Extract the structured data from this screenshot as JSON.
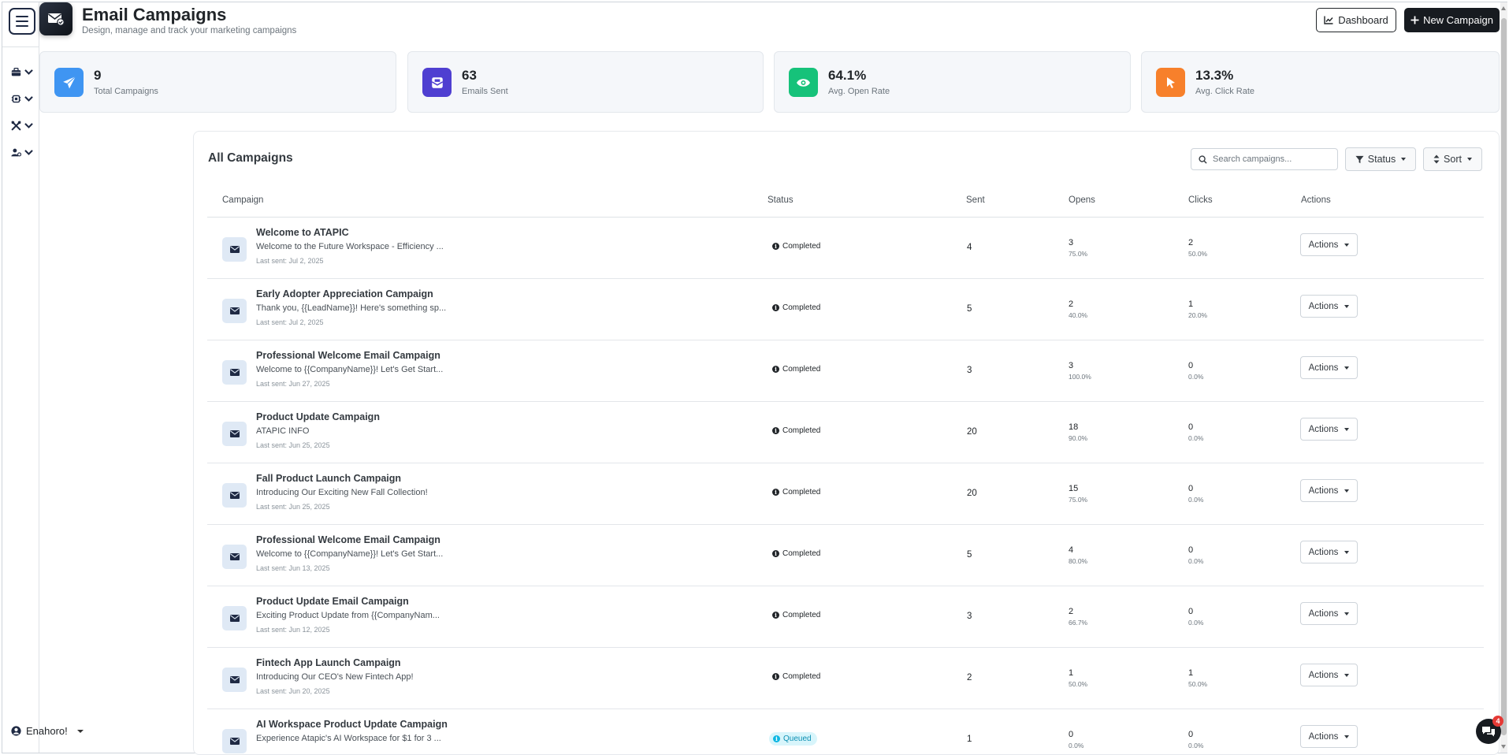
{
  "header": {
    "title": "Email Campaigns",
    "subtitle": "Design, manage and track your marketing campaigns",
    "dashboard_label": "Dashboard",
    "new_campaign_label": "New Campaign"
  },
  "sidebar": {
    "items": [
      {
        "icon": "briefcase-icon"
      },
      {
        "icon": "chip-icon"
      },
      {
        "icon": "tools-icon"
      },
      {
        "icon": "user-gear-icon"
      }
    ],
    "user_name": "Enahoro!"
  },
  "stats": [
    {
      "value": "9",
      "label": "Total Campaigns",
      "icon": "paper-plane-icon",
      "color": "#3f95f2"
    },
    {
      "value": "63",
      "label": "Emails Sent",
      "icon": "envelope-open-icon",
      "color": "#4f3fd1"
    },
    {
      "value": "64.1%",
      "label": "Avg. Open Rate",
      "icon": "eye-icon",
      "color": "#16c27a"
    },
    {
      "value": "13.3%",
      "label": "Avg. Click Rate",
      "icon": "pointer-icon",
      "color": "#f7802b"
    }
  ],
  "campaigns_panel": {
    "title": "All Campaigns",
    "search_placeholder": "Search campaigns...",
    "status_label": "Status",
    "sort_label": "Sort",
    "columns": [
      "Campaign",
      "Status",
      "Sent",
      "Opens",
      "Clicks",
      "Actions"
    ]
  },
  "campaigns": [
    {
      "name": "Welcome to ATAPIC",
      "subject": "Welcome to the Future Workspace - Efficiency ...",
      "last_sent": "Last sent: Jul 2, 2025",
      "status": "Completed",
      "sent": "4",
      "opens": "3",
      "open_rate": "75.0%",
      "clicks": "2",
      "click_rate": "50.0%",
      "actions": "Actions"
    },
    {
      "name": "Early Adopter Appreciation Campaign",
      "subject": "Thank you, {{LeadName}}! Here's something sp...",
      "last_sent": "Last sent: Jul 2, 2025",
      "status": "Completed",
      "sent": "5",
      "opens": "2",
      "open_rate": "40.0%",
      "clicks": "1",
      "click_rate": "20.0%",
      "actions": "Actions"
    },
    {
      "name": "Professional Welcome Email Campaign",
      "subject": "Welcome to {{CompanyName}}! Let's Get Start...",
      "last_sent": "Last sent: Jun 27, 2025",
      "status": "Completed",
      "sent": "3",
      "opens": "3",
      "open_rate": "100.0%",
      "clicks": "0",
      "click_rate": "0.0%",
      "actions": "Actions"
    },
    {
      "name": "Product Update Campaign",
      "subject": "ATAPIC INFO",
      "last_sent": "Last sent: Jun 25, 2025",
      "status": "Completed",
      "sent": "20",
      "opens": "18",
      "open_rate": "90.0%",
      "clicks": "0",
      "click_rate": "0.0%",
      "actions": "Actions"
    },
    {
      "name": "Fall Product Launch Campaign",
      "subject": "Introducing Our Exciting New Fall Collection!",
      "last_sent": "Last sent: Jun 25, 2025",
      "status": "Completed",
      "sent": "20",
      "opens": "15",
      "open_rate": "75.0%",
      "clicks": "0",
      "click_rate": "0.0%",
      "actions": "Actions"
    },
    {
      "name": "Professional Welcome Email Campaign",
      "subject": "Welcome to {{CompanyName}}! Let's Get Start...",
      "last_sent": "Last sent: Jun 13, 2025",
      "status": "Completed",
      "sent": "5",
      "opens": "4",
      "open_rate": "80.0%",
      "clicks": "0",
      "click_rate": "0.0%",
      "actions": "Actions"
    },
    {
      "name": "Product Update Email Campaign",
      "subject": "Exciting Product Update from {{CompanyNam...",
      "last_sent": "Last sent: Jun 12, 2025",
      "status": "Completed",
      "sent": "3",
      "opens": "2",
      "open_rate": "66.7%",
      "clicks": "0",
      "click_rate": "0.0%",
      "actions": "Actions"
    },
    {
      "name": "Fintech App Launch Campaign",
      "subject": "Introducing Our CEO's New Fintech App!",
      "last_sent": "Last sent: Jun 20, 2025",
      "status": "Completed",
      "sent": "2",
      "opens": "1",
      "open_rate": "50.0%",
      "clicks": "1",
      "click_rate": "50.0%",
      "actions": "Actions"
    },
    {
      "name": "AI Workspace Product Update Campaign",
      "subject": "Experience Atapic's AI Workspace for $1 for 3 ...",
      "last_sent": "",
      "status": "Queued",
      "sent": "1",
      "opens": "0",
      "open_rate": "0.0%",
      "clicks": "0",
      "click_rate": "0.0%",
      "actions": "Actions"
    }
  ],
  "chat": {
    "badge": "4"
  }
}
